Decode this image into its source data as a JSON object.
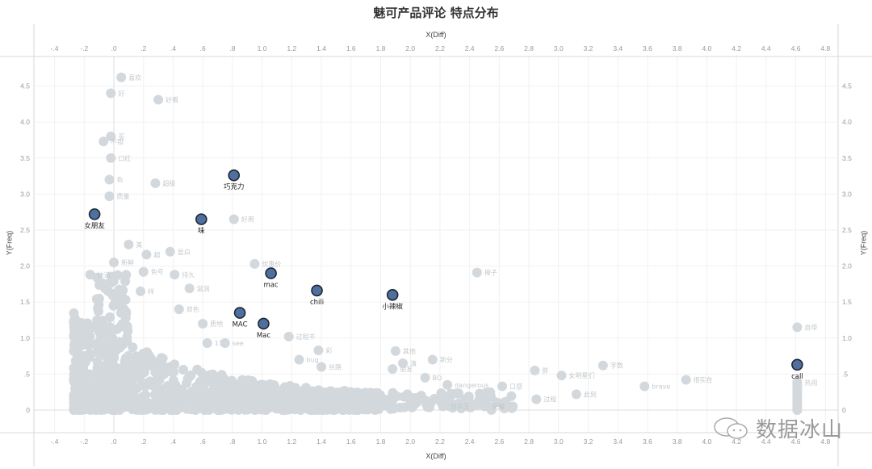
{
  "title": "魅可产品评论 特点分布",
  "x_axis": {
    "title": "X(Diff)",
    "ticks": [
      "-.4",
      "-.2",
      ".0",
      ".2",
      ".4",
      ".6",
      ".8",
      "1.0",
      "1.2",
      "1.4",
      "1.6",
      "1.8",
      "2.0",
      "2.2",
      "2.4",
      "2.6",
      "2.8",
      "3.0",
      "3.2",
      "3.4",
      "3.6",
      "3.8",
      "4.0",
      "4.2",
      "4.4",
      "4.6",
      "4.8"
    ],
    "tick_values": [
      -0.4,
      -0.2,
      0,
      0.2,
      0.4,
      0.6,
      0.8,
      1.0,
      1.2,
      1.4,
      1.6,
      1.8,
      2.0,
      2.2,
      2.4,
      2.6,
      2.8,
      3.0,
      3.2,
      3.4,
      3.6,
      3.8,
      4.0,
      4.2,
      4.4,
      4.6,
      4.8
    ]
  },
  "y_axis": {
    "title": "Y(Freq)",
    "ticks": [
      "0",
      ".5",
      "1.0",
      "1.5",
      "2.0",
      "2.5",
      "3.0",
      "3.5",
      "4.0",
      "4.5"
    ],
    "tick_values": [
      0,
      0.5,
      1.0,
      1.5,
      2.0,
      2.5,
      3.0,
      3.5,
      4.0,
      4.5
    ]
  },
  "colors": {
    "highlight_fill": "#4f6f9f",
    "highlight_stroke": "#1d2533",
    "grey_point": "#d3d8dd",
    "grey_label": "#c3c8cc",
    "grid": "#e8e8e8"
  },
  "watermark": "数据冰山",
  "chart_data": {
    "type": "scatter",
    "title": "魅可产品评论 特点分布",
    "xlabel": "X(Diff)",
    "ylabel": "Y(Freq)",
    "xlim": [
      -0.45,
      4.85
    ],
    "ylim": [
      -0.15,
      4.8
    ],
    "grid": true,
    "dual_axes": true,
    "highlighted_points": [
      {
        "label": "巧克力",
        "x": 0.81,
        "y": 3.26
      },
      {
        "label": "女朋友",
        "x": -0.13,
        "y": 2.72
      },
      {
        "label": "味",
        "x": 0.59,
        "y": 2.65
      },
      {
        "label": "mac",
        "x": 1.06,
        "y": 1.9
      },
      {
        "label": "chili",
        "x": 1.37,
        "y": 1.66
      },
      {
        "label": "小辣椒",
        "x": 1.88,
        "y": 1.6
      },
      {
        "label": "MAC",
        "x": 0.85,
        "y": 1.35
      },
      {
        "label": "Mac",
        "x": 1.01,
        "y": 1.2
      },
      {
        "label": "call",
        "x": 4.61,
        "y": 0.63
      }
    ],
    "labeled_grey_points": [
      {
        "label": "喜欢",
        "x": 0.05,
        "y": 4.62
      },
      {
        "label": "好",
        "x": -0.02,
        "y": 4.4
      },
      {
        "label": "好看",
        "x": 0.3,
        "y": 4.31
      },
      {
        "label": "买",
        "x": -0.02,
        "y": 3.8
      },
      {
        "label": "不错",
        "x": -0.07,
        "y": 3.73
      },
      {
        "label": "口红",
        "x": -0.02,
        "y": 3.5
      },
      {
        "label": "色",
        "x": -0.03,
        "y": 3.2
      },
      {
        "label": "质量",
        "x": -0.03,
        "y": 2.97
      },
      {
        "label": "超级",
        "x": 0.28,
        "y": 3.15
      },
      {
        "label": "好用",
        "x": 0.81,
        "y": 2.65
      },
      {
        "label": "美",
        "x": 0.1,
        "y": 2.3
      },
      {
        "label": "超",
        "x": 0.22,
        "y": 2.16
      },
      {
        "label": "显白",
        "x": 0.38,
        "y": 2.2
      },
      {
        "label": "新鲜",
        "x": 0.0,
        "y": 2.05
      },
      {
        "label": "色号",
        "x": 0.2,
        "y": 1.92
      },
      {
        "label": "持久",
        "x": 0.41,
        "y": 1.88
      },
      {
        "label": "快递",
        "x": -0.16,
        "y": 1.88
      },
      {
        "label": "优惠价",
        "x": 0.95,
        "y": 2.03
      },
      {
        "label": "样",
        "x": 0.18,
        "y": 1.65
      },
      {
        "label": "滋润",
        "x": 0.51,
        "y": 1.69
      },
      {
        "label": "双色",
        "x": 0.44,
        "y": 1.4
      },
      {
        "label": "质地",
        "x": 0.6,
        "y": 1.2
      },
      {
        "label": "11",
        "x": 0.63,
        "y": 0.93
      },
      {
        "label": "see",
        "x": 0.75,
        "y": 0.93
      },
      {
        "label": "过程不",
        "x": 1.18,
        "y": 1.02
      },
      {
        "label": "bug",
        "x": 1.25,
        "y": 0.7
      },
      {
        "label": "彩",
        "x": 1.38,
        "y": 0.83
      },
      {
        "label": "丝路",
        "x": 1.4,
        "y": 0.6
      },
      {
        "label": "其他",
        "x": 1.9,
        "y": 0.82
      },
      {
        "label": "橙子",
        "x": 2.45,
        "y": 1.91
      },
      {
        "label": "朋友",
        "x": 1.88,
        "y": 0.57
      },
      {
        "label": "新分",
        "x": 2.15,
        "y": 0.7
      },
      {
        "label": "清",
        "x": 1.95,
        "y": 0.65
      },
      {
        "label": "BO",
        "x": 2.1,
        "y": 0.45
      },
      {
        "label": "dangerous",
        "x": 2.25,
        "y": 0.35
      },
      {
        "label": "口感",
        "x": 2.62,
        "y": 0.33
      },
      {
        "label": "胖",
        "x": 2.84,
        "y": 0.55
      },
      {
        "label": "女明星们",
        "x": 3.02,
        "y": 0.48
      },
      {
        "label": "字数",
        "x": 3.3,
        "y": 0.62
      },
      {
        "label": "此刻",
        "x": 3.12,
        "y": 0.22
      },
      {
        "label": "brave",
        "x": 3.58,
        "y": 0.33
      },
      {
        "label": "很实在",
        "x": 3.86,
        "y": 0.42
      },
      {
        "label": "自带",
        "x": 4.61,
        "y": 1.15
      },
      {
        "label": "热闹",
        "x": 4.61,
        "y": 0.38
      },
      {
        "label": "到手王",
        "x": 2.22,
        "y": 0.05
      },
      {
        "label": "荣耀",
        "x": 2.5,
        "y": 0.05
      },
      {
        "label": "过程",
        "x": 2.85,
        "y": 0.15
      }
    ],
    "notes": "Dense cluster of unlabeled grey points between x=-0.3 and x=1.8 with y from 0 to ~1.2; column of points at x≈4.61 from y=0 to 0.4"
  }
}
